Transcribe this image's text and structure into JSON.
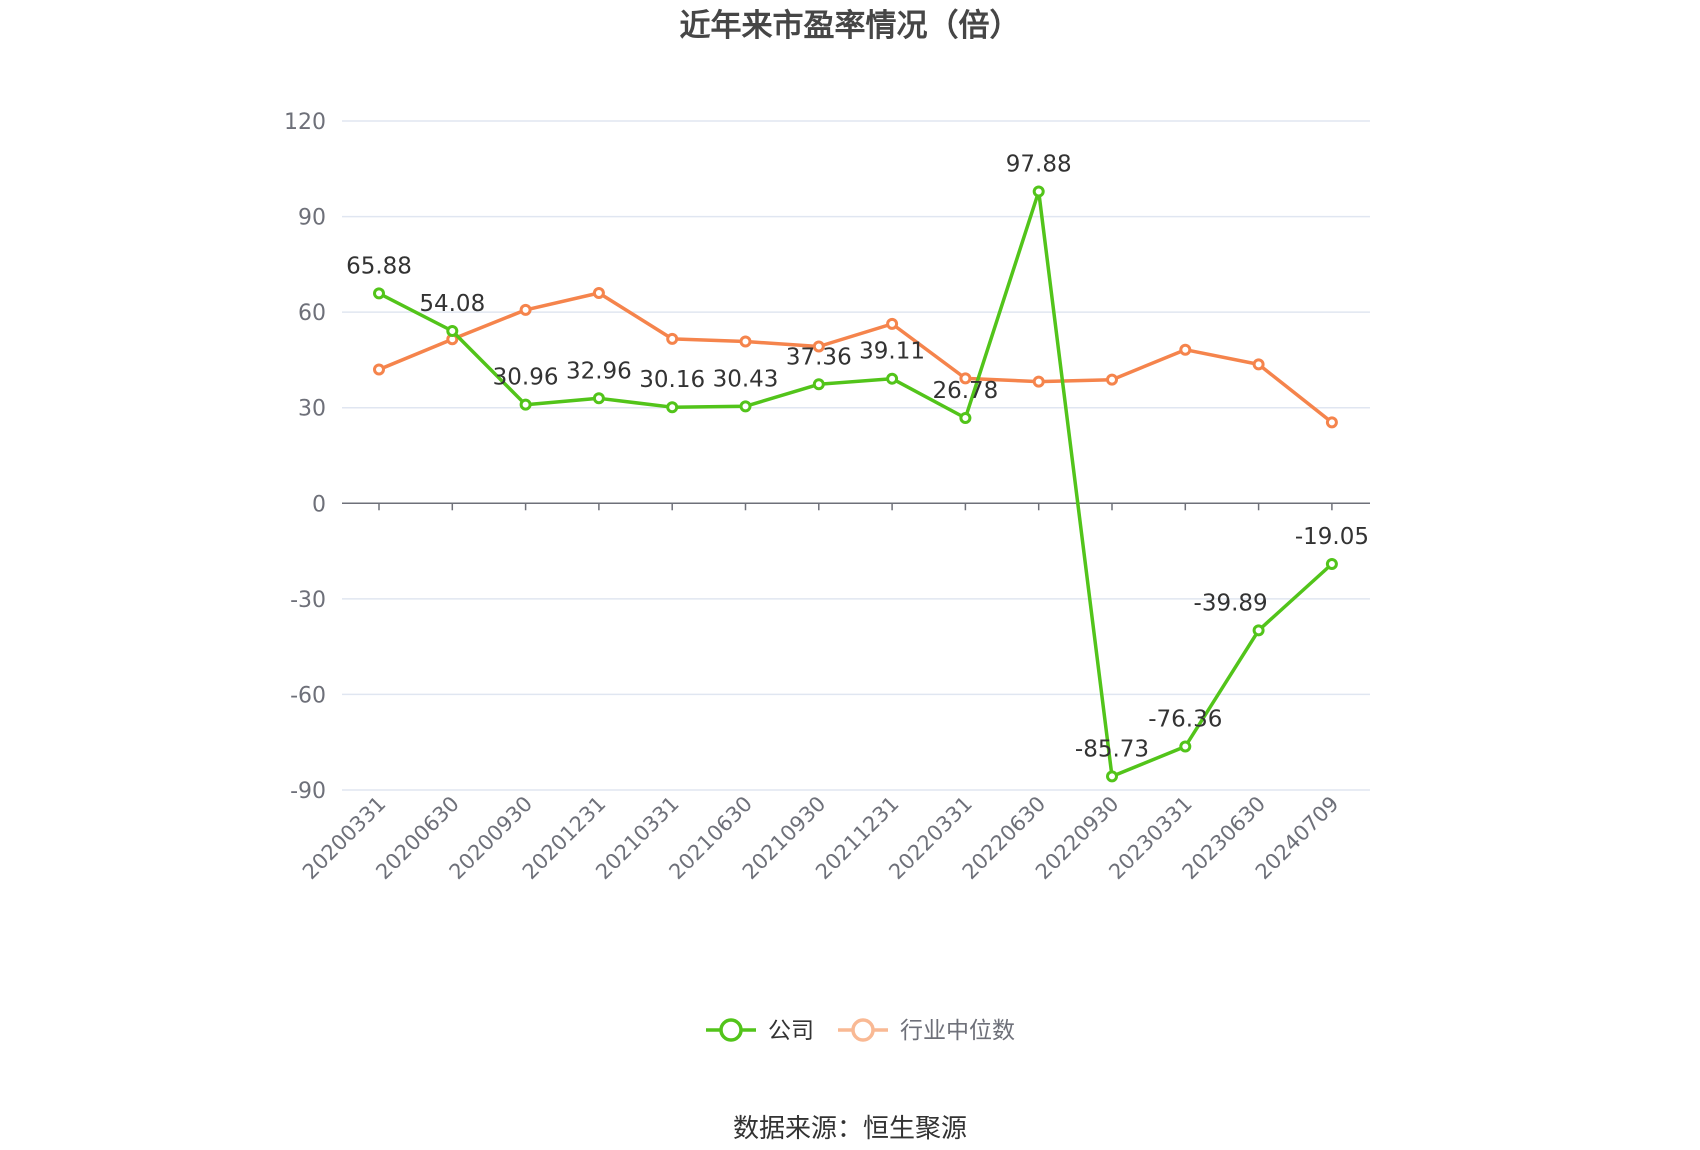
{
  "chart_data": {
    "type": "line",
    "title": "近年来市盈率情况（倍）",
    "categories": [
      "20200331",
      "20200630",
      "20200930",
      "20201231",
      "20210331",
      "20210630",
      "20210930",
      "20211231",
      "20220331",
      "20220630",
      "20220930",
      "20230331",
      "20230630",
      "20240709"
    ],
    "ylim": [
      -90,
      120
    ],
    "yticks": [
      120,
      90,
      60,
      30,
      0,
      -30,
      -60,
      -90
    ],
    "grid": true,
    "legend_position": "bottom",
    "series": [
      {
        "name": "公司",
        "color": "#52c41a",
        "show_labels": true,
        "values": [
          65.88,
          54.08,
          30.96,
          32.96,
          30.16,
          30.43,
          37.36,
          39.11,
          26.78,
          97.88,
          -85.73,
          -76.36,
          -39.89,
          -19.05
        ],
        "labels": [
          "65.88",
          "54.08",
          "30.96",
          "32.96",
          "30.16",
          "30.43",
          "37.36",
          "39.11",
          "26.78",
          "97.88",
          "-85.73",
          "-76.36",
          "-39.89",
          "-19.05"
        ]
      },
      {
        "name": "行业中位数",
        "color": "#f5844c",
        "legend_color": "#f9b994",
        "show_labels": false,
        "values": [
          42.0,
          51.5,
          60.7,
          66.0,
          51.6,
          50.8,
          49.2,
          56.3,
          39.2,
          38.2,
          38.8,
          48.2,
          43.6,
          25.4
        ]
      }
    ]
  },
  "source": "数据来源：恒生聚源"
}
